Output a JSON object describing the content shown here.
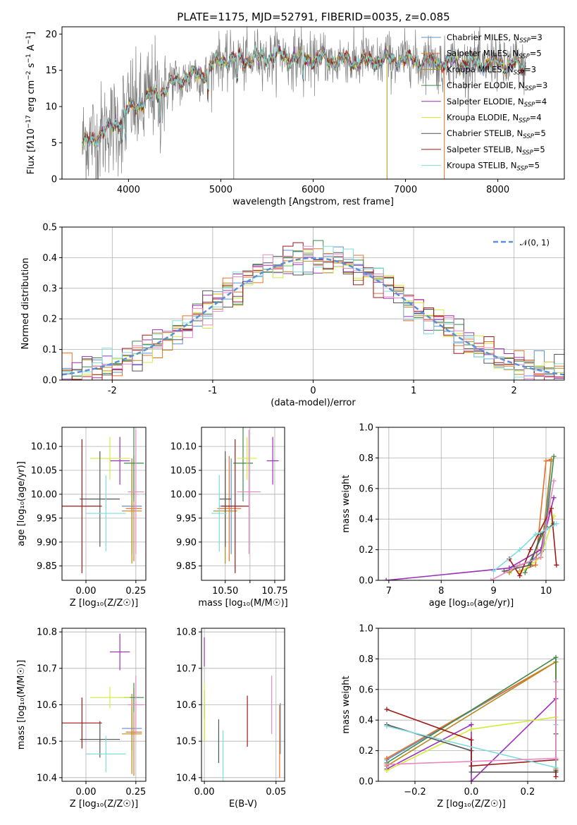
{
  "title": "PLATE=1175, MJD=52791, FIBERID=0035, z=0.085",
  "colors": {
    "chabrier_miles": "#5a8fd6",
    "salpeter_miles": "#e8702a",
    "kroupa_miles": "#b88a1c",
    "chabrier_elodie": "#3f8a4a",
    "salpeter_elodie": "#9b30b8",
    "kroupa_elodie": "#d4ec3a",
    "chabrier_stelib": "#555555",
    "salpeter_stelib": "#a01818",
    "kroupa_stelib": "#7fdcdc",
    "pink": "#e78ac3",
    "data": "#808080",
    "gaussian": "#5b8fd6",
    "grid": "#b0b0b0"
  },
  "legend_spectrum": [
    {
      "label": "Chabrier MILES, N",
      "sub": "SSP",
      "suffix": "=3",
      "color_key": "chabrier_miles"
    },
    {
      "label": "Salpeter MILES, N",
      "sub": "SSP",
      "suffix": "=5",
      "color_key": "salpeter_miles"
    },
    {
      "label": "Kroupa MILES, N",
      "sub": "SSP",
      "suffix": "=3",
      "color_key": "kroupa_miles"
    },
    {
      "label": "Chabrier ELODIE, N",
      "sub": "SSP",
      "suffix": "=3",
      "color_key": "chabrier_elodie"
    },
    {
      "label": "Salpeter ELODIE, N",
      "sub": "SSP",
      "suffix": "=4",
      "color_key": "salpeter_elodie"
    },
    {
      "label": "Kroupa ELODIE, N",
      "sub": "SSP",
      "suffix": "=4",
      "color_key": "kroupa_elodie"
    },
    {
      "label": "Chabrier STELIB, N",
      "sub": "SSP",
      "suffix": "=5",
      "color_key": "chabrier_stelib"
    },
    {
      "label": "Salpeter STELIB, N",
      "sub": "SSP",
      "suffix": "=5",
      "color_key": "salpeter_stelib"
    },
    {
      "label": "Kroupa STELIB, N",
      "sub": "SSP",
      "suffix": "=5",
      "color_key": "kroupa_stelib"
    }
  ],
  "legend_hist": "𝒩(0, 1)",
  "chart_data": [
    {
      "id": "spectrum",
      "type": "line",
      "xlabel": "wavelength [Angstrom, rest frame]",
      "ylabel": "Flux [f_λ 10^-17 erg cm^-2 s^-1 A^-1]",
      "xlim": [
        3280,
        8720
      ],
      "ylim": [
        0,
        21
      ],
      "xticks": [
        4000,
        5000,
        6000,
        7000,
        8000
      ],
      "yticks": [
        0,
        5,
        10,
        15,
        20
      ],
      "continuum_anchors": {
        "x": [
          3500,
          3600,
          3800,
          4000,
          4200,
          4400,
          4600,
          4800,
          5000,
          5300,
          5600,
          6000,
          6500,
          7000,
          7500,
          8000,
          8300
        ],
        "y": [
          4.5,
          5.5,
          7,
          9.5,
          11,
          12.5,
          14,
          14.5,
          16.5,
          16.5,
          17,
          16.5,
          16.3,
          16.5,
          16,
          16,
          15.5
        ]
      },
      "x_range": [
        3500,
        8300
      ]
    },
    {
      "id": "residual_hist",
      "type": "line",
      "xlabel": "(data-model)/error",
      "ylabel": "Normed distribution",
      "xlim": [
        -2.5,
        2.5
      ],
      "ylim": [
        0,
        0.5
      ],
      "xticks": [
        -2,
        -1,
        0,
        1,
        2
      ],
      "yticks": [
        0,
        0.1,
        0.2,
        0.3,
        0.4,
        0.5
      ],
      "bin_width": 0.1,
      "gaussian": {
        "mu": 0,
        "sigma": 1,
        "name": "𝒩(0, 1)"
      }
    },
    {
      "id": "age_vs_Z",
      "type": "scatter",
      "xlabel": "Z [log₁₀(Z/Z☉)]",
      "ylabel": "age  [log₁₀(age/yr)]",
      "xlim": [
        -0.12,
        0.3
      ],
      "ylim": [
        9.82,
        10.14
      ],
      "xticks": [
        0.0,
        0.25
      ],
      "yticks": [
        9.85,
        9.9,
        9.95,
        10.0,
        10.05,
        10.1
      ],
      "points": [
        {
          "c": "chabrier_miles",
          "x": 0.23,
          "xe": 0.05,
          "y": 9.975,
          "ye": 0.1
        },
        {
          "c": "salpeter_miles",
          "x": 0.24,
          "xe": 0.04,
          "y": 9.97,
          "ye": 0.11
        },
        {
          "c": "kroupa_miles",
          "x": 0.23,
          "xe": 0.05,
          "y": 9.965,
          "ye": 0.11
        },
        {
          "c": "chabrier_elodie",
          "x": 0.24,
          "xe": 0.05,
          "y": 10.065,
          "ye": 0.08
        },
        {
          "c": "salpeter_elodie",
          "x": 0.17,
          "xe": 0.05,
          "y": 10.07,
          "ye": 0.05
        },
        {
          "c": "kroupa_elodie",
          "x": 0.12,
          "xe": 0.1,
          "y": 10.075,
          "ye": 0.045
        },
        {
          "c": "chabrier_stelib",
          "x": 0.07,
          "xe": 0.1,
          "y": 9.99,
          "ye": 0.1
        },
        {
          "c": "salpeter_stelib",
          "x": -0.02,
          "xe": 0.1,
          "y": 9.975,
          "ye": 0.14
        },
        {
          "c": "kroupa_stelib",
          "x": 0.1,
          "xe": 0.1,
          "y": 9.96,
          "ye": 0.08
        },
        {
          "c": "pink",
          "x": 0.25,
          "xe": 0.04,
          "y": 10.005,
          "ye": 0.13
        }
      ]
    },
    {
      "id": "age_vs_mass",
      "type": "scatter",
      "xlabel": "mass [log₁₀(M/M☉)]",
      "ylabel": "",
      "xlim": [
        10.38,
        10.8
      ],
      "ylim": [
        9.82,
        10.14
      ],
      "xticks": [
        10.5,
        10.625,
        10.75
      ],
      "xticklabels": [
        "10.50",
        "",
        "10.75"
      ],
      "yticks": [
        9.85,
        9.9,
        9.95,
        10.0,
        10.05,
        10.1
      ],
      "points": [
        {
          "c": "chabrier_miles",
          "x": 10.53,
          "xe": 0.06,
          "y": 9.975,
          "ye": 0.1
        },
        {
          "c": "salpeter_miles",
          "x": 10.52,
          "xe": 0.06,
          "y": 9.97,
          "ye": 0.11
        },
        {
          "c": "kroupa_miles",
          "x": 10.5,
          "xe": 0.06,
          "y": 9.965,
          "ye": 0.11
        },
        {
          "c": "chabrier_elodie",
          "x": 10.59,
          "xe": 0.05,
          "y": 10.065,
          "ye": 0.08
        },
        {
          "c": "salpeter_elodie",
          "x": 10.74,
          "xe": 0.03,
          "y": 10.07,
          "ye": 0.05
        },
        {
          "c": "kroupa_elodie",
          "x": 10.61,
          "xe": 0.05,
          "y": 10.075,
          "ye": 0.045
        },
        {
          "c": "chabrier_stelib",
          "x": 10.5,
          "xe": 0.03,
          "y": 9.99,
          "ye": 0.1
        },
        {
          "c": "salpeter_stelib",
          "x": 10.55,
          "xe": 0.07,
          "y": 9.975,
          "ye": 0.14
        },
        {
          "c": "kroupa_stelib",
          "x": 10.47,
          "xe": 0.04,
          "y": 9.96,
          "ye": 0.08
        },
        {
          "c": "pink",
          "x": 10.62,
          "xe": 0.06,
          "y": 10.005,
          "ye": 0.13
        }
      ]
    },
    {
      "id": "massweight_vs_age",
      "type": "line",
      "xlabel": "age  [log₁₀(age/yr)]",
      "ylabel": "mass weight",
      "xlim": [
        6.8,
        10.35
      ],
      "ylim": [
        0,
        1.0
      ],
      "xticks": [
        7,
        8,
        9,
        10
      ],
      "yticks": [
        0.0,
        0.2,
        0.4,
        0.6,
        0.8,
        1.0
      ],
      "series": [
        {
          "c": "chabrier_miles",
          "x": [
            9.3,
            9.7,
            9.95,
            10.1
          ],
          "y": [
            0.08,
            0.12,
            0.2,
            0.78
          ]
        },
        {
          "c": "salpeter_miles",
          "x": [
            9.5,
            9.8,
            10.0,
            10.1
          ],
          "y": [
            0.06,
            0.1,
            0.78,
            0.79
          ]
        },
        {
          "c": "kroupa_miles",
          "x": [
            9.3,
            9.5,
            9.9,
            10.1
          ],
          "y": [
            0.05,
            0.1,
            0.15,
            0.78
          ]
        },
        {
          "c": "chabrier_elodie",
          "x": [
            9.6,
            10.0,
            10.15
          ],
          "y": [
            0.05,
            0.35,
            0.81
          ]
        },
        {
          "c": "salpeter_elodie",
          "x": [
            6.95,
            9.3,
            9.9,
            10.15
          ],
          "y": [
            0.0,
            0.08,
            0.2,
            0.54
          ]
        },
        {
          "c": "kroupa_elodie",
          "x": [
            9.5,
            9.9,
            10.15
          ],
          "y": [
            0.05,
            0.15,
            0.42
          ]
        },
        {
          "c": "chabrier_stelib",
          "x": [
            9.2,
            9.7,
            9.9,
            10.15
          ],
          "y": [
            0.06,
            0.1,
            0.3,
            0.37
          ]
        },
        {
          "c": "salpeter_stelib",
          "x": [
            9.3,
            9.5,
            9.7,
            10.1,
            10.2
          ],
          "y": [
            0.14,
            0.03,
            0.2,
            0.47,
            0.1
          ]
        },
        {
          "c": "kroupa_stelib",
          "x": [
            9.0,
            9.5,
            9.8,
            10.0,
            10.2
          ],
          "y": [
            0.06,
            0.2,
            0.3,
            0.33,
            0.37
          ]
        },
        {
          "c": "pink",
          "x": [
            8.95,
            9.5,
            9.9,
            10.15
          ],
          "y": [
            0.0,
            0.1,
            0.15,
            0.65
          ]
        }
      ]
    },
    {
      "id": "mass_vs_Z",
      "type": "scatter",
      "xlabel": "Z [log₁₀(Z/Z☉)]",
      "ylabel": "mass [log₁₀(M/M☉)]",
      "xlim": [
        -0.12,
        0.3
      ],
      "ylim": [
        10.39,
        10.81
      ],
      "xticks": [
        0.0,
        0.25
      ],
      "yticks": [
        10.4,
        10.5,
        10.6,
        10.7,
        10.8
      ],
      "points": [
        {
          "c": "chabrier_miles",
          "x": 0.23,
          "xe": 0.05,
          "y": 10.535,
          "ye": 0.06
        },
        {
          "c": "salpeter_miles",
          "x": 0.24,
          "xe": 0.04,
          "y": 10.525,
          "ye": 0.12
        },
        {
          "c": "kroupa_miles",
          "x": 0.23,
          "xe": 0.05,
          "y": 10.52,
          "ye": 0.11
        },
        {
          "c": "chabrier_elodie",
          "x": 0.24,
          "xe": 0.05,
          "y": 10.62,
          "ye": 0.04
        },
        {
          "c": "salpeter_elodie",
          "x": 0.17,
          "xe": 0.05,
          "y": 10.745,
          "ye": 0.05
        },
        {
          "c": "kroupa_elodie",
          "x": 0.12,
          "xe": 0.1,
          "y": 10.62,
          "ye": 0.03
        },
        {
          "c": "chabrier_stelib",
          "x": 0.07,
          "xe": 0.1,
          "y": 10.505,
          "ye": 0.05
        },
        {
          "c": "salpeter_stelib",
          "x": -0.02,
          "xe": 0.1,
          "y": 10.55,
          "ye": 0.07
        },
        {
          "c": "kroupa_stelib",
          "x": 0.1,
          "xe": 0.1,
          "y": 10.465,
          "ye": 0.05
        },
        {
          "c": "pink",
          "x": 0.25,
          "xe": 0.04,
          "y": 10.6,
          "ye": 0.08
        }
      ]
    },
    {
      "id": "mass_vs_ebv",
      "type": "scatter",
      "xlabel": "E(B-V)",
      "ylabel": "",
      "xlim": [
        -0.002,
        0.056
      ],
      "ylim": [
        10.39,
        10.81
      ],
      "xticks": [
        0.0,
        0.05
      ],
      "xticklabels": [
        "0.00",
        "0.05"
      ],
      "yticks": [
        10.4,
        10.5,
        10.6,
        10.7,
        10.8
      ],
      "points": [
        {
          "c": "chabrier_miles",
          "x": 0.053,
          "xe": 0,
          "y": 10.535,
          "ye": 0.07
        },
        {
          "c": "salpeter_miles",
          "x": 0.0525,
          "xe": 0,
          "y": 10.5,
          "ye": 0.1
        },
        {
          "c": "kroupa_miles",
          "x": 0.0,
          "xe": 0,
          "y": 10.55,
          "ye": 0.05
        },
        {
          "c": "chabrier_elodie",
          "x": 0.0,
          "xe": 0,
          "y": 10.6,
          "ye": 0.04
        },
        {
          "c": "salpeter_elodie",
          "x": 0.0,
          "xe": 0,
          "y": 10.745,
          "ye": 0.04
        },
        {
          "c": "kroupa_elodie",
          "x": 0.0,
          "xe": 0,
          "y": 10.58,
          "ye": 0.08
        },
        {
          "c": "chabrier_stelib",
          "x": 0.01,
          "xe": 0,
          "y": 10.5,
          "ye": 0.06
        },
        {
          "c": "salpeter_stelib",
          "x": 0.03,
          "xe": 0,
          "y": 10.555,
          "ye": 0.07
        },
        {
          "c": "kroupa_stelib",
          "x": 0.013,
          "xe": 0,
          "y": 10.46,
          "ye": 0.07
        },
        {
          "c": "pink",
          "x": 0.047,
          "xe": 0,
          "y": 10.6,
          "ye": 0.08
        }
      ]
    },
    {
      "id": "massweight_vs_Z",
      "type": "line",
      "xlabel": "Z [log₁₀(Z/Z☉)]",
      "ylabel": "mass weight",
      "xlim": [
        -0.33,
        0.33
      ],
      "ylim": [
        0,
        1.0
      ],
      "xticks": [
        -0.2,
        0.0,
        0.2
      ],
      "yticks": [
        0.0,
        0.2,
        0.4,
        0.6,
        0.8,
        1.0
      ],
      "series": [
        {
          "c": "chabrier_miles",
          "x": [
            -0.3,
            0.3,
            0.3
          ],
          "y": [
            0.14,
            0.78,
            0.06
          ]
        },
        {
          "c": "salpeter_miles",
          "x": [
            -0.3,
            0.3,
            0.3
          ],
          "y": [
            0.15,
            0.78,
            0.08
          ]
        },
        {
          "c": "kroupa_miles",
          "x": [
            -0.3,
            0.3,
            0.3
          ],
          "y": [
            0.1,
            0.78,
            0.07
          ]
        },
        {
          "c": "chabrier_elodie",
          "x": [
            -0.3,
            0.3,
            0.3
          ],
          "y": [
            0.12,
            0.81,
            0.07
          ]
        },
        {
          "c": "salpeter_elodie",
          "x": [
            -0.3,
            0.0,
            0.0,
            0.3
          ],
          "y": [
            0.08,
            0.37,
            0.0,
            0.54
          ]
        },
        {
          "c": "kroupa_elodie",
          "x": [
            -0.3,
            0.0,
            0.3
          ],
          "y": [
            0.07,
            0.34,
            0.42
          ]
        },
        {
          "c": "chabrier_stelib",
          "x": [
            -0.3,
            0.0,
            0.0,
            0.3,
            0.3
          ],
          "y": [
            0.37,
            0.2,
            0.06,
            0.06,
            0.31
          ]
        },
        {
          "c": "salpeter_stelib",
          "x": [
            -0.3,
            0.0,
            0.0,
            0.3,
            0.3
          ],
          "y": [
            0.47,
            0.27,
            0.1,
            0.14,
            0.03
          ]
        },
        {
          "c": "kroupa_stelib",
          "x": [
            -0.3,
            0.3,
            0.3
          ],
          "y": [
            0.36,
            0.09,
            0.37
          ]
        },
        {
          "c": "pink",
          "x": [
            -0.3,
            0.3,
            0.3
          ],
          "y": [
            0.11,
            0.15,
            0.65
          ]
        }
      ]
    }
  ]
}
